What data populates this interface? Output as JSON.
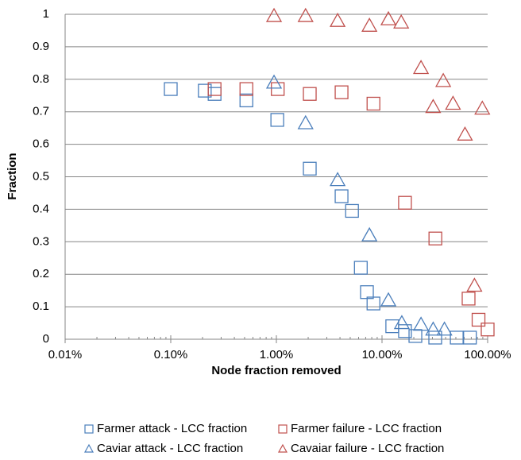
{
  "chart_data": {
    "type": "scatter",
    "x_label": "Node fraction removed",
    "y_label": "Fraction",
    "xscale": "log",
    "xlim": [
      0.01,
      100
    ],
    "xticks": [
      {
        "value": 0.01,
        "label": "0.01%"
      },
      {
        "value": 0.1,
        "label": "0.10%"
      },
      {
        "value": 1,
        "label": "1.00%"
      },
      {
        "value": 10,
        "label": "10.00%"
      },
      {
        "value": 100,
        "label": "100.00%"
      }
    ],
    "ylim": [
      0,
      1
    ],
    "yticks": [
      0,
      0.1,
      0.2,
      0.3,
      0.4,
      0.5,
      0.6,
      0.7,
      0.8,
      0.9,
      1
    ],
    "grid": true,
    "legend": "bottom",
    "series": [
      {
        "name": "Farmer attack - LCC fraction",
        "color": "#4a7ebb",
        "marker": "square",
        "x": [
          0.1,
          0.21,
          0.26,
          0.52,
          1.02,
          2.07,
          4.14,
          5.2,
          6.3,
          7.2,
          8.3,
          12.5,
          16.5,
          20.7,
          31.9,
          51,
          68
        ],
        "values": [
          0.77,
          0.765,
          0.755,
          0.735,
          0.675,
          0.525,
          0.44,
          0.395,
          0.22,
          0.145,
          0.11,
          0.04,
          0.025,
          0.01,
          0.005,
          0.005,
          0.005
        ]
      },
      {
        "name": "Farmer failure - LCC fraction",
        "color": "#c0504d",
        "marker": "square",
        "x": [
          0.26,
          0.52,
          1.03,
          2.07,
          4.14,
          8.3,
          16.5,
          32,
          66,
          82,
          100
        ],
        "values": [
          0.77,
          0.77,
          0.77,
          0.755,
          0.76,
          0.725,
          0.42,
          0.31,
          0.125,
          0.06,
          0.03
        ]
      },
      {
        "name": "Caviar attack - LCC fraction",
        "color": "#4a7ebb",
        "marker": "triangle",
        "x": [
          0.95,
          1.89,
          3.8,
          7.6,
          11.5,
          15.4,
          23.4,
          30.5,
          39
        ],
        "values": [
          0.79,
          0.665,
          0.49,
          0.32,
          0.12,
          0.05,
          0.045,
          0.03,
          0.03
        ]
      },
      {
        "name": "Cavaiar failure - LCC fraction",
        "color": "#c0504d",
        "marker": "triangle",
        "x": [
          0.95,
          1.89,
          3.8,
          7.6,
          11.5,
          15.2,
          23.4,
          30.5,
          38,
          47,
          61,
          75,
          89
        ],
        "values": [
          0.995,
          0.995,
          0.98,
          0.965,
          0.985,
          0.975,
          0.835,
          0.715,
          0.795,
          0.725,
          0.63,
          0.165,
          0.71
        ]
      }
    ]
  }
}
